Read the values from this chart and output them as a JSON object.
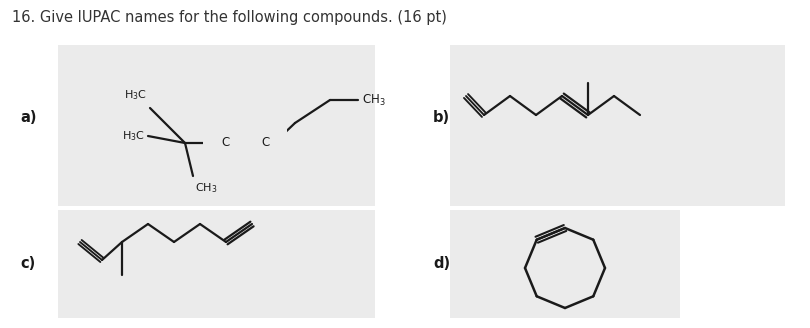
{
  "title": "16. Give IUPAC names for the following compounds. (16 pt)",
  "title_color": "#333333",
  "title_fontsize": 10.5,
  "bg_color": "#ebebeb",
  "white": "#ffffff",
  "line_color": "#1a1a1a",
  "lw": 1.6,
  "label_a": "a)",
  "label_b": "b)",
  "label_c": "c)",
  "label_d": "d)",
  "panel_a": [
    58,
    122,
    375,
    283
  ],
  "panel_b": [
    450,
    122,
    785,
    283
  ],
  "panel_c": [
    58,
    10,
    375,
    118
  ],
  "panel_d": [
    450,
    10,
    680,
    118
  ]
}
